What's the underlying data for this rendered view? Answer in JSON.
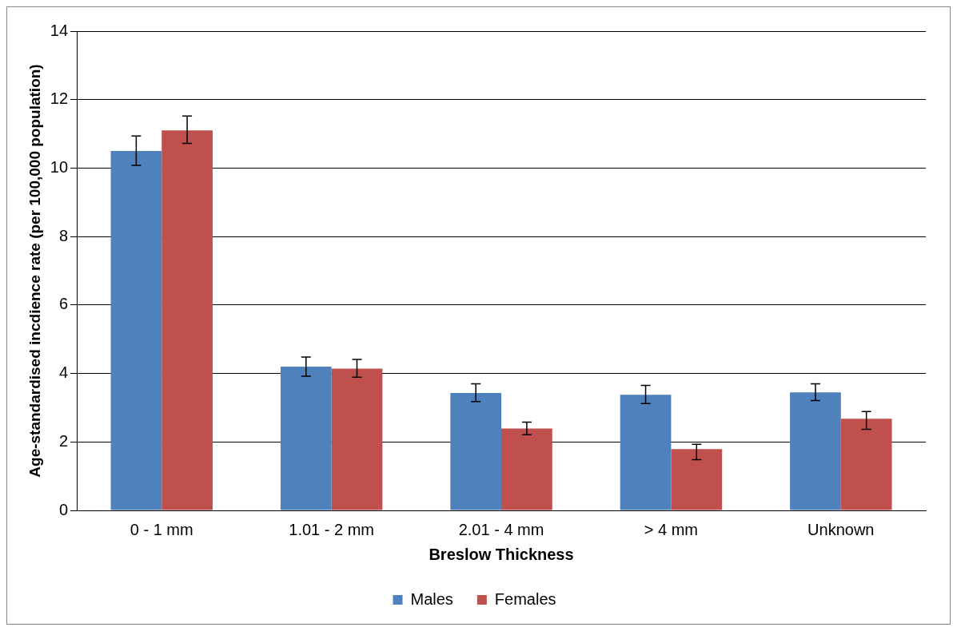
{
  "chart_data": {
    "type": "bar",
    "xlabel": "Breslow Thickness",
    "ylabel": "Age-standardised incdience rate (per 100,000 population)",
    "categories": [
      "0 - 1 mm",
      "1.01 - 2 mm",
      "2.01 - 4 mm",
      "> 4 mm",
      "Unknown"
    ],
    "series": [
      {
        "name": "Males",
        "color": "#4f81bd",
        "values": [
          10.5,
          4.2,
          3.43,
          3.38,
          3.45
        ],
        "errors": [
          [
            10.08,
            10.94
          ],
          [
            3.92,
            4.48
          ],
          [
            3.18,
            3.7
          ],
          [
            3.12,
            3.65
          ],
          [
            3.21,
            3.7
          ]
        ]
      },
      {
        "name": "Females",
        "color": "#c0504d",
        "values": [
          11.1,
          4.14,
          2.39,
          1.79,
          2.68
        ],
        "errors": [
          [
            10.72,
            11.52
          ],
          [
            3.89,
            4.41
          ],
          [
            2.21,
            2.58
          ],
          [
            1.48,
            1.93
          ],
          [
            2.37,
            2.89
          ]
        ]
      }
    ],
    "ylim": [
      0,
      14
    ],
    "yticks": [
      0,
      2,
      4,
      6,
      8,
      10,
      12,
      14
    ],
    "grid": "y",
    "legend": "bottom"
  }
}
